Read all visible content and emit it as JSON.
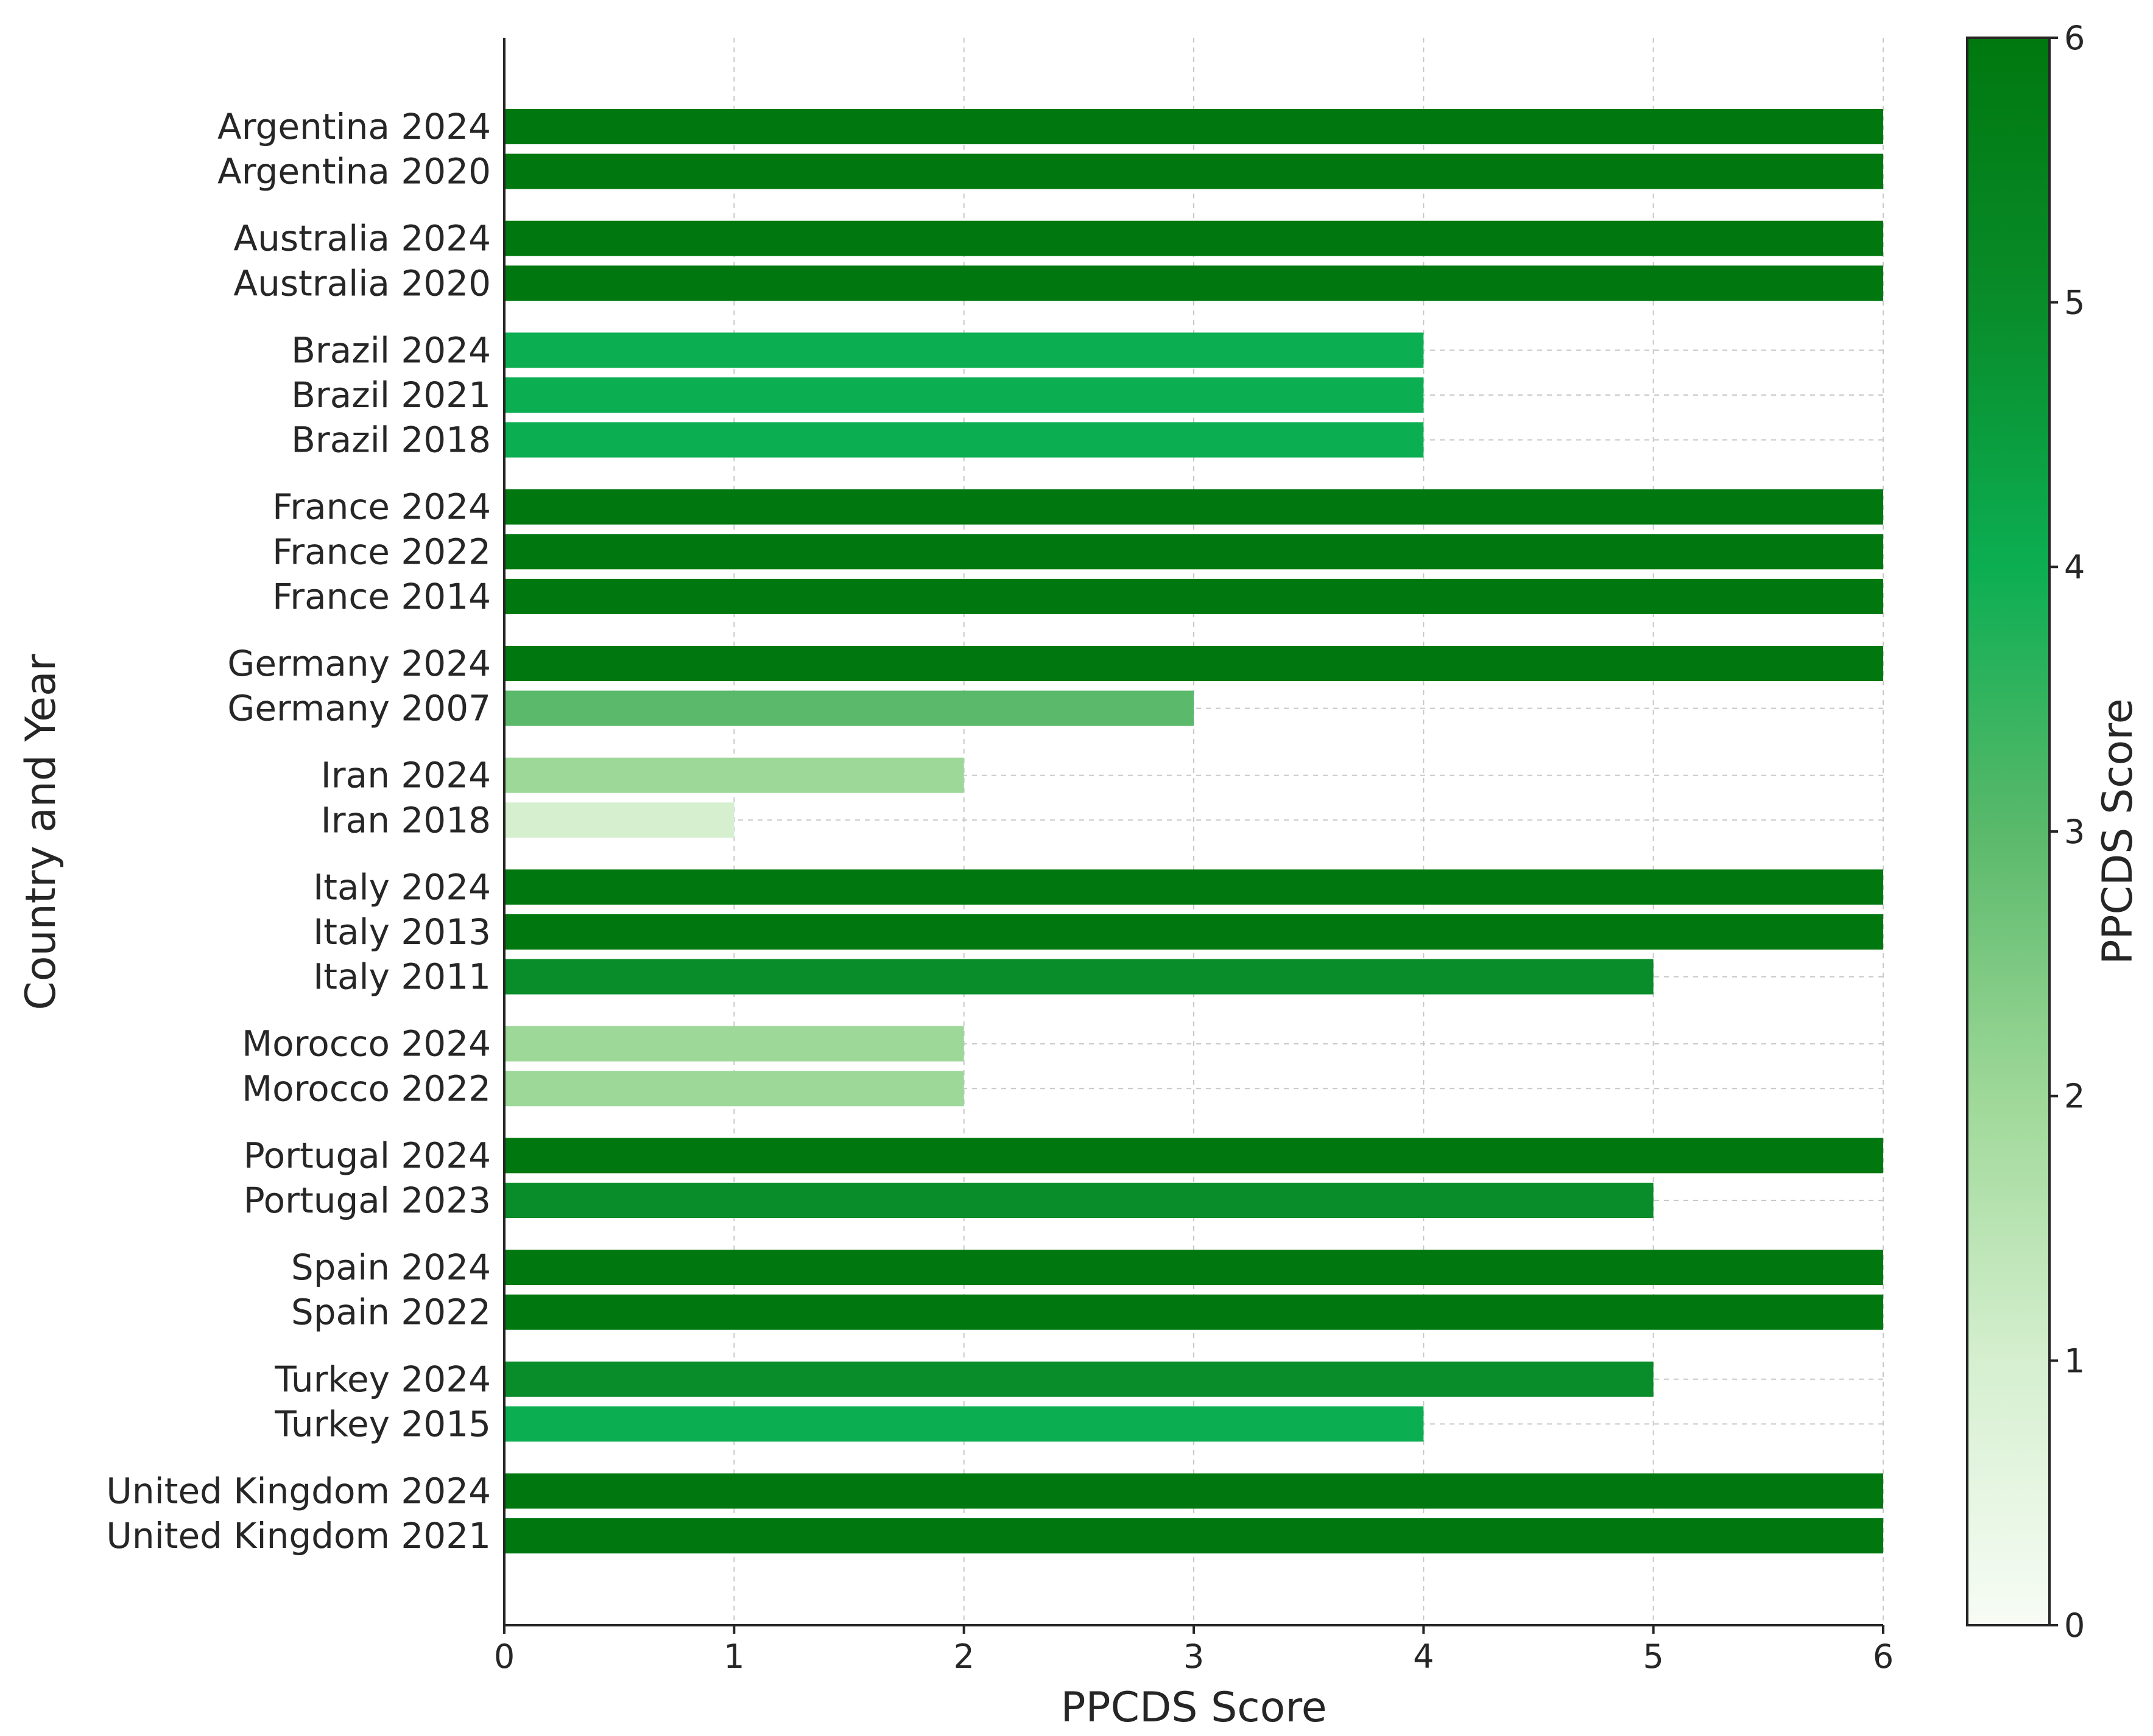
{
  "chart_data": {
    "type": "bar",
    "orientation": "horizontal",
    "xlabel": "PPCDS Score",
    "ylabel": "Country and Year",
    "xlim": [
      0,
      6
    ],
    "xticks": [
      "0",
      "1",
      "2",
      "3",
      "4",
      "5",
      "6"
    ],
    "grid": true,
    "groups": [
      {
        "items": [
          {
            "label": "Argentina 2024",
            "value": 6
          },
          {
            "label": "Argentina 2020",
            "value": 6
          }
        ]
      },
      {
        "items": [
          {
            "label": "Australia 2024",
            "value": 6
          },
          {
            "label": "Australia 2020",
            "value": 6
          }
        ]
      },
      {
        "items": [
          {
            "label": "Brazil 2024",
            "value": 4
          },
          {
            "label": "Brazil 2021",
            "value": 4
          },
          {
            "label": "Brazil 2018",
            "value": 4
          }
        ]
      },
      {
        "items": [
          {
            "label": "France 2024",
            "value": 6
          },
          {
            "label": "France 2022",
            "value": 6
          },
          {
            "label": "France 2014",
            "value": 6
          }
        ]
      },
      {
        "items": [
          {
            "label": "Germany 2024",
            "value": 6
          },
          {
            "label": "Germany 2007",
            "value": 3
          }
        ]
      },
      {
        "items": [
          {
            "label": "Iran 2024",
            "value": 2
          },
          {
            "label": "Iran 2018",
            "value": 1
          }
        ]
      },
      {
        "items": [
          {
            "label": "Italy 2024",
            "value": 6
          },
          {
            "label": "Italy 2013",
            "value": 6
          },
          {
            "label": "Italy 2011",
            "value": 5
          }
        ]
      },
      {
        "items": [
          {
            "label": "Morocco 2024",
            "value": 2
          },
          {
            "label": "Morocco 2022",
            "value": 2
          }
        ]
      },
      {
        "items": [
          {
            "label": "Portugal 2024",
            "value": 6
          },
          {
            "label": "Portugal 2023",
            "value": 5
          }
        ]
      },
      {
        "items": [
          {
            "label": "Spain 2024",
            "value": 6
          },
          {
            "label": "Spain 2022",
            "value": 6
          }
        ]
      },
      {
        "items": [
          {
            "label": "Turkey 2024",
            "value": 5
          },
          {
            "label": "Turkey 2015",
            "value": 4
          }
        ]
      },
      {
        "items": [
          {
            "label": "United Kingdom 2024",
            "value": 6
          },
          {
            "label": "United Kingdom 2021",
            "value": 6
          }
        ]
      }
    ],
    "colorbar": {
      "label": "PPCDS Score",
      "range": [
        0,
        6
      ],
      "ticks": [
        "0",
        "1",
        "2",
        "3",
        "4",
        "5",
        "6"
      ],
      "colormap": "Greens"
    },
    "colors": {
      "0": "#f7fcf5",
      "1": "#d5efcf",
      "2": "#9ed898",
      "3": "#5ab96b",
      "4": "#0cae52",
      "5": "#098c2a",
      "6": "#00780f"
    }
  }
}
